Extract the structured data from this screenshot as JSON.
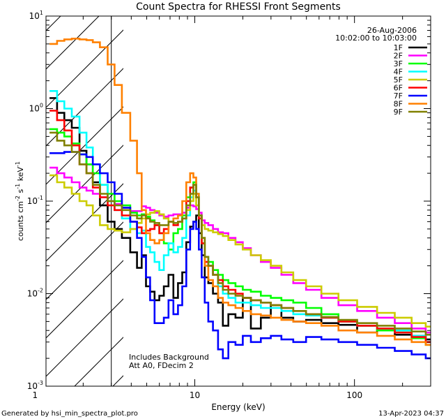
{
  "chart_data": {
    "type": "line",
    "title": "Count Spectra for RHESSI Front Segments",
    "xlabel": "Energy (keV)",
    "ylabel_parts": [
      "counts cm",
      "-2",
      " s",
      "-1",
      " keV",
      "-1"
    ],
    "xscale": "log",
    "yscale": "log",
    "xlim": [
      1.17,
      300
    ],
    "ylim": [
      0.001,
      10
    ],
    "x_ticks": [
      {
        "v": 1,
        "label": "1"
      },
      {
        "v": 10,
        "label": "10"
      },
      {
        "v": 100,
        "label": "100"
      }
    ],
    "y_ticks": [
      {
        "v": 0.001,
        "base": "10",
        "exp": "-3"
      },
      {
        "v": 0.01,
        "base": "10",
        "exp": "-2"
      },
      {
        "v": 0.1,
        "base": "10",
        "exp": "-1"
      },
      {
        "v": 1,
        "base": "10",
        "exp": "0"
      },
      {
        "v": 10,
        "base": "10",
        "exp": "1"
      }
    ],
    "shaded_region_below_keV": 3.0,
    "date": "26-Aug-2006",
    "time_range": "10:02:00 to 10:03:00",
    "annotations": [
      "Includes Background",
      "Att A0, FDecim 2"
    ],
    "footer_left": "Generated by hsi_min_spectra_plot.pro",
    "footer_right": "13-Apr-2023 04:37",
    "series": [
      {
        "name": "1F",
        "color": "#000000",
        "x": [
          1.3,
          1.45,
          1.6,
          1.8,
          2.0,
          2.2,
          2.4,
          2.7,
          3.0,
          3.3,
          3.7,
          4.2,
          4.5,
          4.8,
          5.1,
          5.4,
          5.8,
          6.2,
          6.6,
          7.1,
          7.6,
          8.1,
          8.6,
          9.1,
          9.6,
          10.0,
          10.4,
          10.8,
          11.3,
          11.8,
          12.5,
          13.5,
          14.5,
          15.5,
          17,
          19,
          21,
          24,
          28,
          32,
          38,
          45,
          55,
          70,
          90,
          120,
          160,
          200,
          260,
          300
        ],
        "y": [
          1.3,
          0.9,
          0.75,
          0.62,
          0.35,
          0.25,
          0.16,
          0.09,
          0.06,
          0.05,
          0.04,
          0.028,
          0.019,
          0.026,
          0.012,
          0.0105,
          0.0085,
          0.0095,
          0.012,
          0.016,
          0.009,
          0.013,
          0.017,
          0.036,
          0.053,
          0.06,
          0.07,
          0.045,
          0.026,
          0.015,
          0.013,
          0.01,
          0.008,
          0.0045,
          0.006,
          0.0055,
          0.009,
          0.0042,
          0.0055,
          0.0075,
          0.0055,
          0.005,
          0.0052,
          0.0048,
          0.0046,
          0.0038,
          0.004,
          0.0036,
          0.0035,
          0.0032
        ]
      },
      {
        "name": "2F",
        "color": "#ff00ff",
        "x": [
          1.3,
          1.45,
          1.6,
          1.8,
          2.0,
          2.2,
          2.4,
          2.7,
          3.0,
          3.3,
          3.7,
          4.2,
          4.5,
          4.8,
          5.1,
          5.4,
          5.8,
          6.2,
          6.6,
          7.1,
          7.6,
          8.1,
          8.6,
          9.1,
          9.6,
          10.0,
          10.4,
          10.8,
          11.3,
          11.8,
          12.5,
          13.5,
          14.5,
          15.5,
          17,
          19,
          21,
          24,
          28,
          32,
          38,
          45,
          55,
          70,
          90,
          120,
          160,
          200,
          260,
          300
        ],
        "y": [
          0.23,
          0.2,
          0.18,
          0.16,
          0.14,
          0.13,
          0.12,
          0.11,
          0.1,
          0.093,
          0.085,
          0.078,
          0.078,
          0.088,
          0.085,
          0.08,
          0.075,
          0.07,
          0.068,
          0.07,
          0.072,
          0.072,
          0.075,
          0.085,
          0.09,
          0.088,
          0.082,
          0.075,
          0.062,
          0.058,
          0.055,
          0.05,
          0.046,
          0.045,
          0.04,
          0.036,
          0.031,
          0.026,
          0.022,
          0.019,
          0.016,
          0.013,
          0.011,
          0.009,
          0.0075,
          0.0065,
          0.0055,
          0.0048,
          0.0042,
          0.0038
        ]
      },
      {
        "name": "3F",
        "color": "#00ff00",
        "x": [
          1.3,
          1.45,
          1.6,
          1.8,
          2.0,
          2.2,
          2.4,
          2.7,
          3.0,
          3.3,
          3.7,
          4.2,
          4.5,
          4.8,
          5.1,
          5.4,
          5.8,
          6.2,
          6.6,
          7.1,
          7.6,
          8.1,
          8.6,
          9.1,
          9.6,
          10.0,
          10.4,
          10.8,
          11.3,
          11.8,
          12.5,
          13.5,
          14.5,
          15.5,
          17,
          19,
          21,
          24,
          28,
          32,
          38,
          45,
          55,
          70,
          90,
          120,
          160,
          200,
          260,
          300
        ],
        "y": [
          0.6,
          0.55,
          0.5,
          0.42,
          0.32,
          0.25,
          0.2,
          0.15,
          0.12,
          0.1,
          0.09,
          0.075,
          0.07,
          0.072,
          0.068,
          0.062,
          0.055,
          0.045,
          0.035,
          0.03,
          0.045,
          0.05,
          0.07,
          0.11,
          0.14,
          0.16,
          0.12,
          0.07,
          0.035,
          0.025,
          0.022,
          0.018,
          0.016,
          0.014,
          0.013,
          0.012,
          0.011,
          0.0105,
          0.0095,
          0.009,
          0.0085,
          0.008,
          0.007,
          0.006,
          0.005,
          0.0045,
          0.004,
          0.0038,
          0.0033,
          0.0028
        ]
      },
      {
        "name": "4F",
        "color": "#00ffff",
        "x": [
          1.3,
          1.45,
          1.6,
          1.8,
          2.0,
          2.2,
          2.4,
          2.7,
          3.0,
          3.3,
          3.7,
          4.2,
          4.5,
          4.8,
          5.1,
          5.4,
          5.8,
          6.2,
          6.6,
          7.1,
          7.6,
          8.1,
          8.6,
          9.1,
          9.6,
          10.0,
          10.4,
          10.8,
          11.3,
          11.8,
          12.5,
          13.5,
          14.5,
          15.5,
          17,
          19,
          21,
          24,
          28,
          32,
          38,
          45,
          55,
          70,
          90,
          120,
          160,
          200,
          260,
          300
        ],
        "y": [
          1.55,
          1.2,
          1.0,
          0.82,
          0.55,
          0.38,
          0.25,
          0.15,
          0.1,
          0.08,
          0.065,
          0.05,
          0.045,
          0.048,
          0.032,
          0.028,
          0.022,
          0.018,
          0.026,
          0.035,
          0.028,
          0.032,
          0.04,
          0.07,
          0.11,
          0.13,
          0.12,
          0.07,
          0.04,
          0.025,
          0.02,
          0.016,
          0.012,
          0.01,
          0.009,
          0.008,
          0.008,
          0.0075,
          0.007,
          0.007,
          0.0065,
          0.006,
          0.0058,
          0.0055,
          0.005,
          0.0045,
          0.0042,
          0.004,
          0.0035,
          0.003
        ]
      },
      {
        "name": "5F",
        "color": "#cccc00",
        "x": [
          1.3,
          1.45,
          1.6,
          1.8,
          2.0,
          2.2,
          2.4,
          2.7,
          3.0,
          3.3,
          3.7,
          4.2,
          4.5,
          4.8,
          5.1,
          5.4,
          5.8,
          6.2,
          6.6,
          7.1,
          7.6,
          8.1,
          8.6,
          9.1,
          9.6,
          10.0,
          10.4,
          10.8,
          11.3,
          11.8,
          12.5,
          13.5,
          14.5,
          15.5,
          17,
          19,
          21,
          24,
          28,
          32,
          38,
          45,
          55,
          70,
          90,
          120,
          160,
          200,
          260,
          300
        ],
        "y": [
          0.19,
          0.16,
          0.14,
          0.12,
          0.1,
          0.09,
          0.07,
          0.055,
          0.05,
          0.048,
          0.046,
          0.05,
          0.058,
          0.065,
          0.072,
          0.075,
          0.078,
          0.072,
          0.065,
          0.06,
          0.058,
          0.06,
          0.065,
          0.08,
          0.1,
          0.12,
          0.09,
          0.065,
          0.055,
          0.05,
          0.048,
          0.046,
          0.044,
          0.042,
          0.038,
          0.034,
          0.03,
          0.026,
          0.023,
          0.02,
          0.017,
          0.014,
          0.012,
          0.01,
          0.0085,
          0.0072,
          0.0062,
          0.0055,
          0.0048,
          0.0044
        ]
      },
      {
        "name": "6F",
        "color": "#ff0000",
        "x": [
          1.3,
          1.45,
          1.6,
          1.8,
          2.0,
          2.2,
          2.4,
          2.7,
          3.0,
          3.3,
          3.7,
          4.2,
          4.5,
          4.8,
          5.1,
          5.4,
          5.8,
          6.2,
          6.6,
          7.1,
          7.6,
          8.1,
          8.6,
          9.1,
          9.6,
          10.0,
          10.4,
          10.8,
          11.3,
          11.8,
          12.5,
          13.5,
          14.5,
          15.5,
          17,
          19,
          21,
          24,
          28,
          32,
          38,
          45,
          55,
          70,
          90,
          120,
          160,
          200,
          260,
          300
        ],
        "y": [
          0.95,
          0.75,
          0.58,
          0.4,
          0.25,
          0.2,
          0.14,
          0.11,
          0.09,
          0.08,
          0.07,
          0.06,
          0.052,
          0.045,
          0.048,
          0.05,
          0.055,
          0.045,
          0.05,
          0.06,
          0.055,
          0.06,
          0.065,
          0.1,
          0.14,
          0.15,
          0.11,
          0.065,
          0.035,
          0.022,
          0.02,
          0.016,
          0.014,
          0.012,
          0.011,
          0.01,
          0.009,
          0.0085,
          0.008,
          0.0075,
          0.007,
          0.0065,
          0.006,
          0.0055,
          0.005,
          0.0045,
          0.0042,
          0.0038,
          0.0034,
          0.003
        ]
      },
      {
        "name": "7F",
        "color": "#0000ff",
        "x": [
          1.3,
          1.45,
          1.6,
          1.8,
          2.0,
          2.2,
          2.4,
          2.7,
          3.0,
          3.3,
          3.7,
          4.2,
          4.5,
          4.8,
          5.1,
          5.4,
          5.8,
          6.2,
          6.6,
          7.1,
          7.6,
          8.1,
          8.6,
          9.1,
          9.6,
          10.0,
          10.4,
          10.8,
          11.3,
          11.8,
          12.5,
          13.5,
          14.5,
          15.5,
          17,
          19,
          21,
          24,
          28,
          32,
          38,
          45,
          55,
          70,
          90,
          120,
          160,
          200,
          260,
          300
        ],
        "y": [
          0.33,
          0.33,
          0.34,
          0.34,
          0.32,
          0.3,
          0.25,
          0.2,
          0.16,
          0.12,
          0.085,
          0.06,
          0.04,
          0.025,
          0.015,
          0.0085,
          0.0048,
          0.0048,
          0.0055,
          0.0085,
          0.006,
          0.0075,
          0.012,
          0.03,
          0.05,
          0.06,
          0.05,
          0.03,
          0.015,
          0.008,
          0.005,
          0.004,
          0.0025,
          0.002,
          0.003,
          0.0028,
          0.0035,
          0.003,
          0.0033,
          0.0035,
          0.0032,
          0.003,
          0.0034,
          0.0032,
          0.003,
          0.0028,
          0.0026,
          0.0024,
          0.0022,
          0.002
        ]
      },
      {
        "name": "8F",
        "color": "#ff8000",
        "x": [
          1.3,
          1.45,
          1.6,
          1.8,
          2.0,
          2.2,
          2.4,
          2.7,
          3.0,
          3.3,
          3.7,
          4.2,
          4.5,
          4.8,
          5.1,
          5.4,
          5.8,
          6.2,
          6.6,
          7.1,
          7.6,
          8.1,
          8.6,
          9.1,
          9.6,
          10.0,
          10.4,
          10.8,
          11.3,
          11.8,
          12.5,
          13.5,
          14.5,
          15.5,
          17,
          19,
          21,
          24,
          28,
          32,
          38,
          45,
          55,
          70,
          90,
          120,
          160,
          200,
          260,
          300
        ],
        "y": [
          5.0,
          5.4,
          5.6,
          5.7,
          5.6,
          5.5,
          5.2,
          4.6,
          3.0,
          1.8,
          0.9,
          0.45,
          0.2,
          0.08,
          0.045,
          0.038,
          0.035,
          0.038,
          0.045,
          0.06,
          0.065,
          0.07,
          0.1,
          0.16,
          0.2,
          0.18,
          0.12,
          0.07,
          0.04,
          0.02,
          0.014,
          0.012,
          0.009,
          0.008,
          0.0075,
          0.007,
          0.0065,
          0.006,
          0.0058,
          0.0055,
          0.0052,
          0.005,
          0.0048,
          0.0045,
          0.004,
          0.0038,
          0.0035,
          0.0032,
          0.003,
          0.0028
        ]
      },
      {
        "name": "9F",
        "color": "#808000",
        "x": [
          1.3,
          1.45,
          1.6,
          1.8,
          2.0,
          2.2,
          2.4,
          2.7,
          3.0,
          3.3,
          3.7,
          4.2,
          4.5,
          4.8,
          5.1,
          5.4,
          5.8,
          6.2,
          6.6,
          7.1,
          7.6,
          8.1,
          8.6,
          9.1,
          9.6,
          10.0,
          10.4,
          10.8,
          11.3,
          11.8,
          12.5,
          13.5,
          14.5,
          15.5,
          17,
          19,
          21,
          24,
          28,
          32,
          38,
          45,
          55,
          70,
          90,
          120,
          160,
          200,
          260,
          300
        ],
        "y": [
          0.55,
          0.45,
          0.4,
          0.34,
          0.25,
          0.2,
          0.15,
          0.12,
          0.1,
          0.09,
          0.08,
          0.07,
          0.065,
          0.07,
          0.065,
          0.06,
          0.058,
          0.055,
          0.055,
          0.06,
          0.058,
          0.06,
          0.065,
          0.09,
          0.12,
          0.15,
          0.11,
          0.07,
          0.04,
          0.025,
          0.02,
          0.016,
          0.013,
          0.011,
          0.01,
          0.0095,
          0.009,
          0.0085,
          0.008,
          0.0075,
          0.007,
          0.0065,
          0.006,
          0.0056,
          0.0052,
          0.0048,
          0.0045,
          0.0042,
          0.0039,
          0.0036
        ]
      }
    ]
  }
}
